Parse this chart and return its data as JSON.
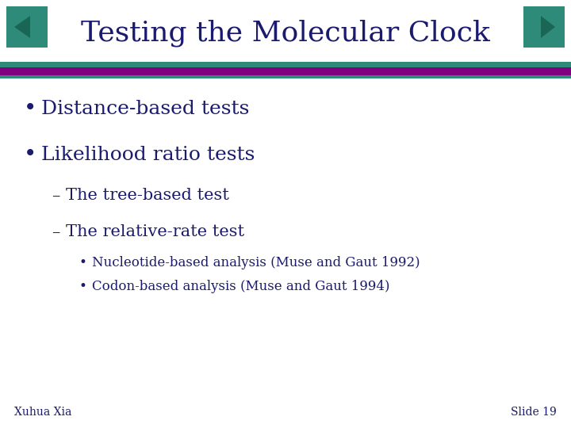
{
  "title": "Testing the Molecular Clock",
  "title_color": "#1a1a6e",
  "background_color": "#ffffff",
  "teal_color": "#2e8b7a",
  "purple_color": "#800080",
  "bullet1": "Distance-based tests",
  "bullet2": "Likelihood ratio tests",
  "sub1": "The tree-based test",
  "sub2": "The relative-rate test",
  "subsub1": "Nucleotide-based analysis (Muse and Gaut 1992)",
  "subsub2": "Codon-based analysis (Muse and Gaut 1994)",
  "footer_left": "Xuhua Xia",
  "footer_right": "Slide 19",
  "text_color": "#1a1a6e",
  "title_fontsize": 26,
  "bullet_fontsize": 18,
  "sub_fontsize": 15,
  "subsub_fontsize": 12,
  "footer_fontsize": 10
}
